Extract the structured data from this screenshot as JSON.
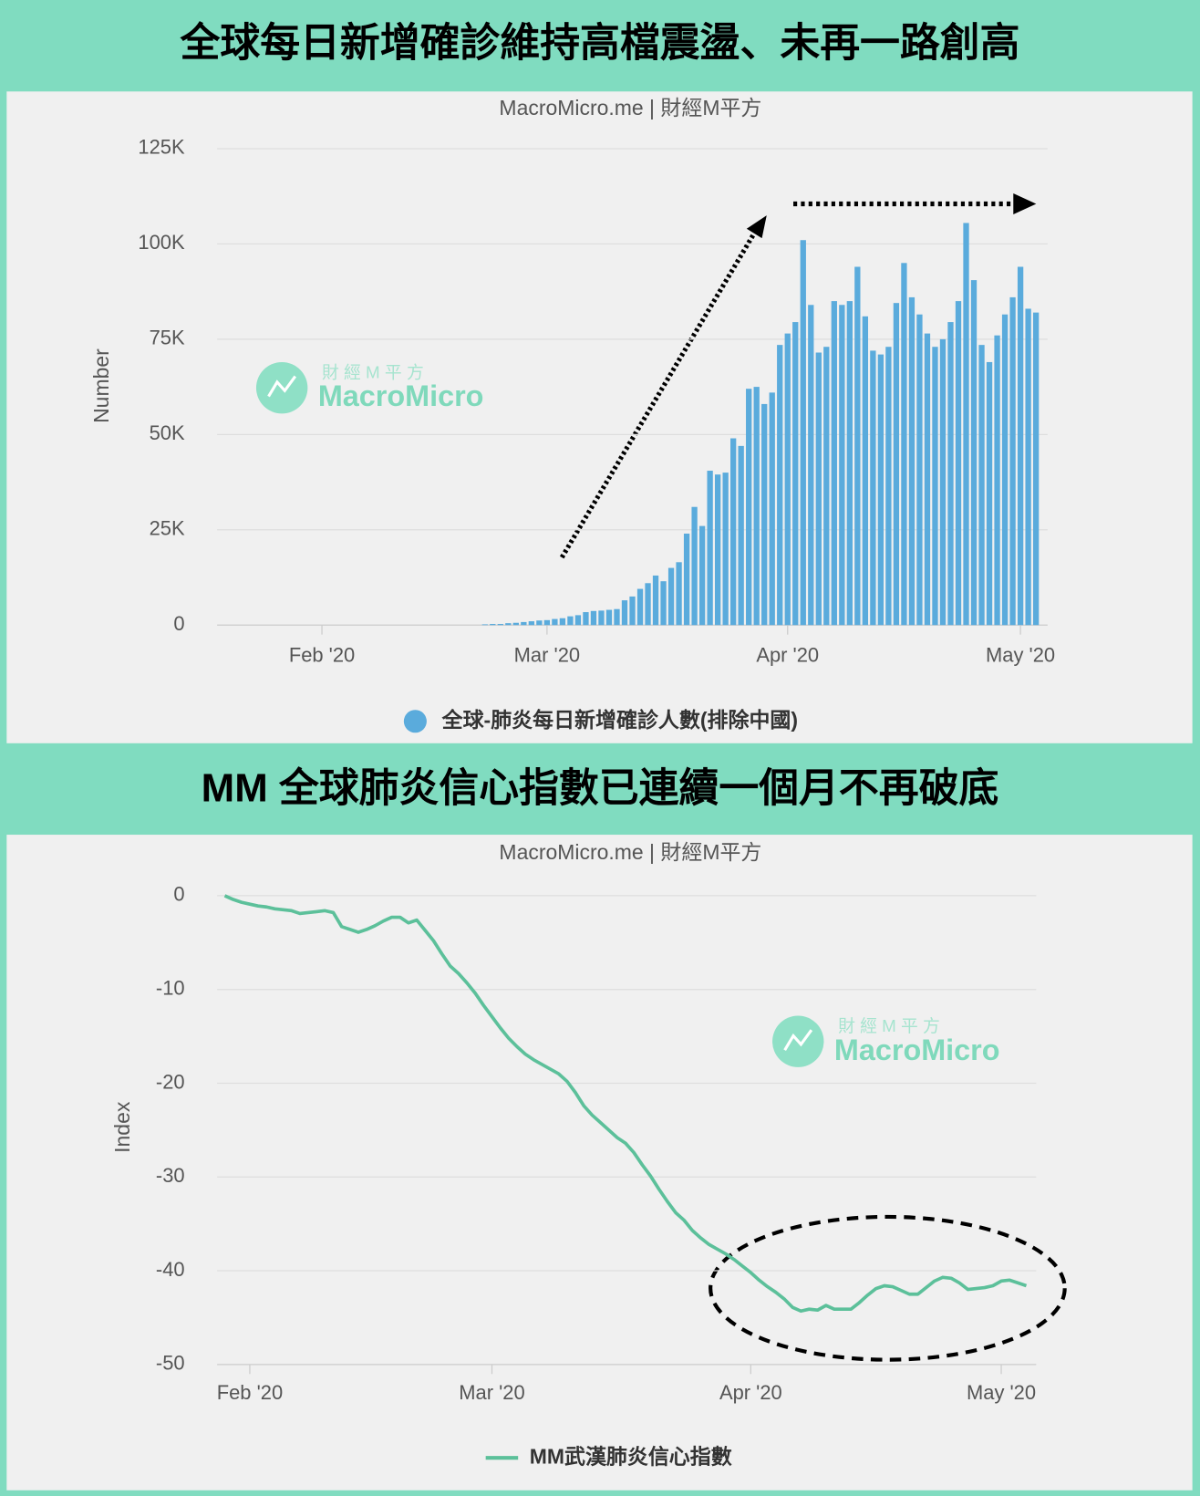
{
  "chart_data": [
    {
      "type": "bar",
      "title": "全球每日新增確診維持高檔震盪、未再一路創高",
      "subtitle": "MacroMicro.me | 財經M平方",
      "y_label": "Number",
      "watermark": {
        "cn": "財 經 M 平 方",
        "en": "MacroMicro"
      },
      "categories": [
        null,
        null,
        null,
        null,
        null,
        null,
        null,
        null,
        null,
        null,
        null,
        null,
        null,
        "Feb '20",
        null,
        null,
        null,
        null,
        null,
        null,
        null,
        null,
        null,
        null,
        null,
        null,
        null,
        null,
        null,
        null,
        null,
        null,
        null,
        null,
        null,
        null,
        null,
        null,
        null,
        null,
        null,
        null,
        "Mar '20",
        null,
        null,
        null,
        null,
        null,
        null,
        null,
        null,
        null,
        null,
        null,
        null,
        null,
        null,
        null,
        null,
        null,
        null,
        null,
        null,
        null,
        null,
        null,
        null,
        null,
        null,
        null,
        null,
        null,
        null,
        "Apr '20",
        null,
        null,
        null,
        null,
        null,
        null,
        null,
        null,
        null,
        null,
        null,
        null,
        null,
        null,
        null,
        null,
        null,
        null,
        null,
        null,
        null,
        null,
        null,
        null,
        null,
        null,
        null,
        null,
        null,
        "May '20",
        null,
        null,
        null
      ],
      "series": [
        {
          "name": "全球-肺炎每日新增確診人數(排除中國)",
          "color": "#5aabdc",
          "values": [
            null,
            null,
            null,
            null,
            null,
            null,
            null,
            null,
            null,
            null,
            null,
            null,
            null,
            null,
            null,
            null,
            null,
            null,
            null,
            null,
            null,
            null,
            null,
            null,
            null,
            null,
            null,
            null,
            null,
            null,
            null,
            null,
            null,
            null,
            200,
            300,
            300,
            500,
            600,
            800,
            1000,
            1200,
            1300,
            1600,
            1800,
            2300,
            2600,
            3400,
            3700,
            3800,
            4000,
            4200,
            6500,
            7500,
            9500,
            11000,
            13000,
            11500,
            15000,
            16500,
            24000,
            31000,
            26000,
            40500,
            39500,
            40000,
            49000,
            47000,
            62000,
            62500,
            58000,
            61000,
            73500,
            76500,
            79500,
            101000,
            84000,
            71500,
            73000,
            85000,
            84000,
            85000,
            94000,
            81000,
            72000,
            71000,
            73000,
            84500,
            95000,
            86000,
            81500,
            76500,
            73000,
            75000,
            79500,
            85000,
            105500,
            90500,
            73500,
            69000,
            76000,
            81500,
            86000,
            94000,
            83000,
            82000,
            null
          ]
        }
      ],
      "ylim": [
        0,
        125000
      ],
      "yticks": [
        0,
        {
          "value": 25000,
          "label": "25K"
        },
        {
          "value": 50000,
          "label": "50K"
        },
        {
          "value": 75000,
          "label": "75K"
        },
        {
          "value": 100000,
          "label": "100K"
        },
        {
          "value": 125000,
          "label": "125K"
        }
      ],
      "grid": true
    },
    {
      "type": "line",
      "title": "MM 全球肺炎信心指數已連續一個月不再破底",
      "subtitle": "MacroMicro.me | 財經M平方",
      "y_label": "Index",
      "watermark": {
        "cn": "財 經 M 平 方",
        "en": "MacroMicro"
      },
      "categories": [
        null,
        null,
        null,
        "Feb '20",
        null,
        null,
        null,
        null,
        null,
        null,
        null,
        null,
        null,
        null,
        null,
        null,
        null,
        null,
        null,
        null,
        null,
        null,
        null,
        null,
        null,
        null,
        null,
        null,
        null,
        null,
        null,
        null,
        "Mar '20",
        null,
        null,
        null,
        null,
        null,
        null,
        null,
        null,
        null,
        null,
        null,
        null,
        null,
        null,
        null,
        null,
        null,
        null,
        null,
        null,
        null,
        null,
        null,
        null,
        null,
        null,
        null,
        null,
        null,
        null,
        "Apr '20",
        null,
        null,
        null,
        null,
        null,
        null,
        null,
        null,
        null,
        null,
        null,
        null,
        null,
        null,
        null,
        null,
        null,
        null,
        null,
        null,
        null,
        null,
        null,
        null,
        null,
        null,
        null,
        null,
        null,
        "May '20",
        null,
        null,
        null
      ],
      "series": [
        {
          "name": "MM武漢肺炎信心指數",
          "color": "#5cc09a",
          "values": [
            0,
            -0.4,
            -0.7,
            -0.9,
            -1.1,
            -1.2,
            -1.4,
            -1.5,
            -1.6,
            -1.9,
            -1.8,
            -1.7,
            -1.6,
            -1.8,
            -3.3,
            -3.6,
            -3.9,
            -3.6,
            -3.2,
            -2.7,
            -2.3,
            -2.3,
            -2.9,
            -2.6,
            -3.7,
            -4.8,
            -6.2,
            -7.5,
            -8.3,
            -9.3,
            -10.4,
            -11.7,
            -12.9,
            -14.1,
            -15.2,
            -16.1,
            -16.9,
            -17.5,
            -18.0,
            -18.5,
            -19.0,
            -19.8,
            -21.0,
            -22.4,
            -23.4,
            -24.2,
            -25.0,
            -25.8,
            -26.4,
            -27.4,
            -28.7,
            -29.9,
            -31.3,
            -32.6,
            -33.8,
            -34.6,
            -35.7,
            -36.5,
            -37.2,
            -37.7,
            -38.2,
            -38.8,
            -39.5,
            -40.2,
            -41.0,
            -41.7,
            -42.3,
            -43.0,
            -43.9,
            -44.3,
            -44.1,
            -44.2,
            -43.7,
            -44.1,
            -44.1,
            -44.1,
            -43.4,
            -42.6,
            -41.9,
            -41.6,
            -41.7,
            -42.1,
            -42.5,
            -42.5,
            -41.8,
            -41.1,
            -40.7,
            -40.8,
            -41.3,
            -42.0,
            -41.9,
            -41.8,
            -41.6,
            -41.1,
            -41.0,
            -41.3,
            -41.6
          ]
        }
      ],
      "ylim": [
        -50,
        0
      ],
      "yticks": [
        -50,
        -40,
        -30,
        -20,
        -10,
        0
      ],
      "grid": true
    }
  ]
}
